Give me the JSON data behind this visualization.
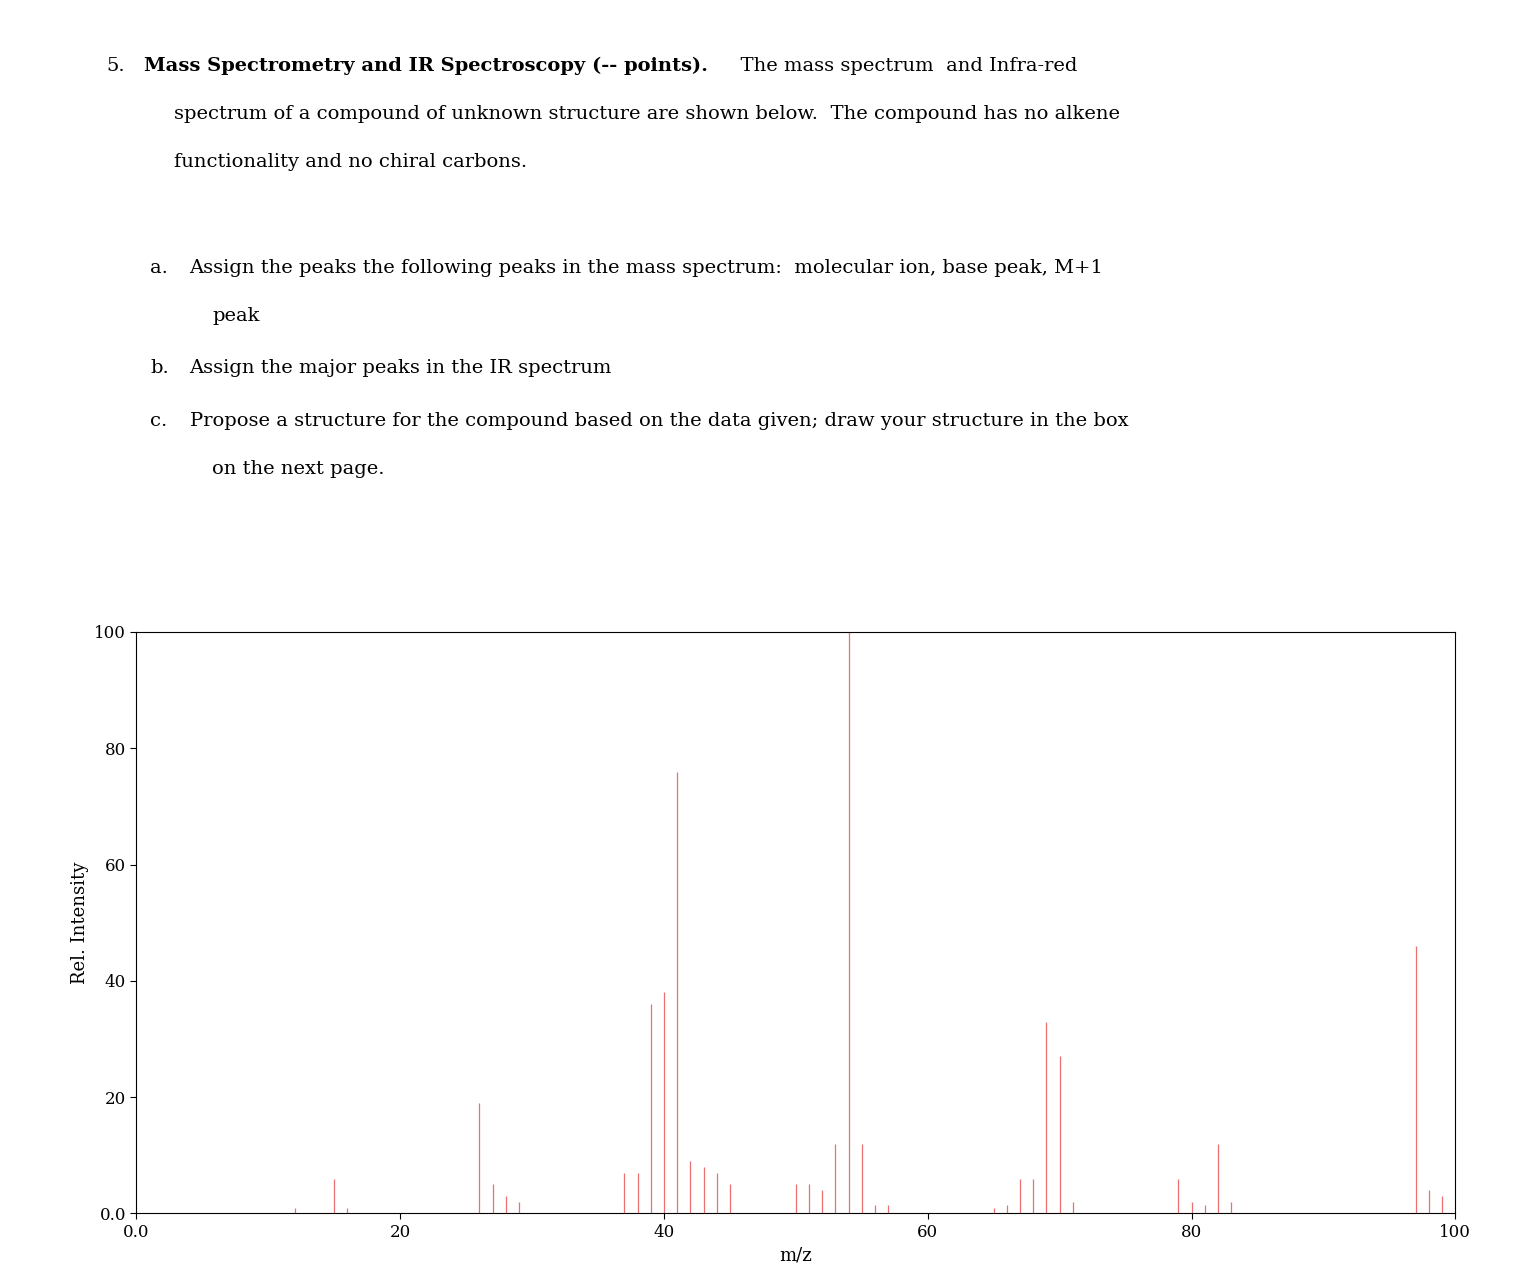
{
  "xlabel": "m/z",
  "ylabel": "Rel. Intensity",
  "xlim": [
    0.0,
    100
  ],
  "ylim": [
    0.0,
    100
  ],
  "xticks": [
    0.0,
    20,
    40,
    60,
    80,
    100
  ],
  "yticks": [
    0.0,
    20,
    40,
    60,
    80,
    100
  ],
  "xtick_labels": [
    "0.0",
    "20",
    "40",
    "60",
    "80",
    "100"
  ],
  "ytick_labels": [
    "0.0",
    "20",
    "40",
    "60",
    "80",
    "100"
  ],
  "peak_color": "#e87070",
  "background_color": "#ffffff",
  "peaks": [
    {
      "mz": 12,
      "intensity": 1.0
    },
    {
      "mz": 15,
      "intensity": 6.0
    },
    {
      "mz": 16,
      "intensity": 1.0
    },
    {
      "mz": 26,
      "intensity": 19.0
    },
    {
      "mz": 27,
      "intensity": 5.0
    },
    {
      "mz": 28,
      "intensity": 3.0
    },
    {
      "mz": 29,
      "intensity": 2.0
    },
    {
      "mz": 37,
      "intensity": 7.0
    },
    {
      "mz": 38,
      "intensity": 7.0
    },
    {
      "mz": 39,
      "intensity": 36.0
    },
    {
      "mz": 40,
      "intensity": 38.0
    },
    {
      "mz": 41,
      "intensity": 76.0
    },
    {
      "mz": 42,
      "intensity": 9.0
    },
    {
      "mz": 43,
      "intensity": 8.0
    },
    {
      "mz": 44,
      "intensity": 7.0
    },
    {
      "mz": 45,
      "intensity": 5.0
    },
    {
      "mz": 50,
      "intensity": 5.0
    },
    {
      "mz": 51,
      "intensity": 5.0
    },
    {
      "mz": 52,
      "intensity": 4.0
    },
    {
      "mz": 53,
      "intensity": 12.0
    },
    {
      "mz": 54,
      "intensity": 100.0
    },
    {
      "mz": 55,
      "intensity": 12.0
    },
    {
      "mz": 56,
      "intensity": 1.5
    },
    {
      "mz": 57,
      "intensity": 1.5
    },
    {
      "mz": 65,
      "intensity": 1.0
    },
    {
      "mz": 66,
      "intensity": 1.5
    },
    {
      "mz": 67,
      "intensity": 6.0
    },
    {
      "mz": 68,
      "intensity": 6.0
    },
    {
      "mz": 69,
      "intensity": 33.0
    },
    {
      "mz": 70,
      "intensity": 27.0
    },
    {
      "mz": 71,
      "intensity": 2.0
    },
    {
      "mz": 79,
      "intensity": 6.0
    },
    {
      "mz": 80,
      "intensity": 2.0
    },
    {
      "mz": 81,
      "intensity": 1.5
    },
    {
      "mz": 82,
      "intensity": 12.0
    },
    {
      "mz": 83,
      "intensity": 2.0
    },
    {
      "mz": 97,
      "intensity": 46.0
    },
    {
      "mz": 98,
      "intensity": 4.0
    },
    {
      "mz": 99,
      "intensity": 3.0
    }
  ],
  "text_number": "5.",
  "text_bold": "Mass Spectrometry and IR Spectroscopy (-- points).",
  "text_normal_suffix": "  The mass spectrum  and Infra-red",
  "text_line2": "spectrum of a compound of unknown structure are shown below.  The compound has no alkene",
  "text_line3": "functionality and no chiral carbons.",
  "qa_label": "a.",
  "qa_text": "Assign the peaks the following peaks in the mass spectrum:  molecular ion, base peak, M+1",
  "qa_cont": "peak",
  "qb_label": "b.",
  "qb_text": "Assign the major peaks in the IR spectrum",
  "qc_label": "c.",
  "qc_text": "Propose a structure for the compound based on the data given; draw your structure in the box",
  "qc_cont": "on the next page.",
  "fontsize_main": 14,
  "fontsize_axis": 13,
  "fontsize_tick": 12
}
